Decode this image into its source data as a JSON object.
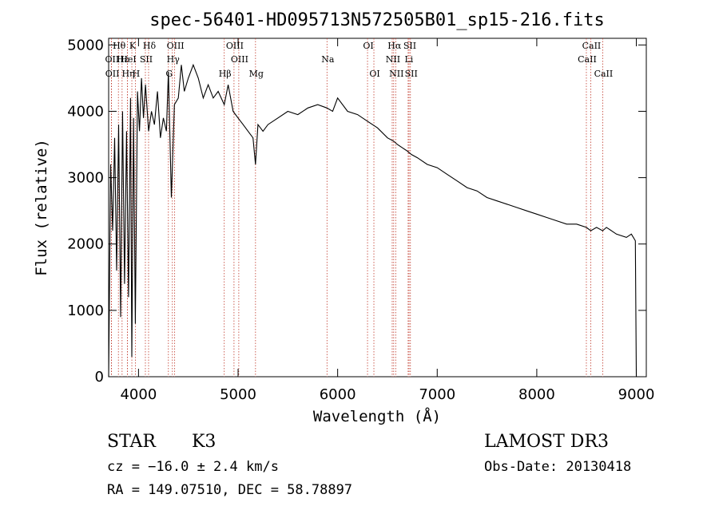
{
  "chart_data": {
    "type": "line",
    "title": "spec-56401-HD095713N572505B01_sp15-216.fits",
    "xlabel": "Wavelength (Å)",
    "ylabel": "Flux (relative)",
    "xlim": [
      3700,
      9100
    ],
    "ylim": [
      0,
      5100
    ],
    "x_ticks": [
      4000,
      5000,
      6000,
      7000,
      8000,
      9000
    ],
    "y_ticks": [
      0,
      1000,
      2000,
      3000,
      4000,
      5000
    ],
    "grid": false,
    "series": [
      {
        "name": "flux",
        "x": [
          3700,
          3720,
          3740,
          3760,
          3780,
          3800,
          3820,
          3840,
          3860,
          3880,
          3900,
          3920,
          3933,
          3950,
          3968,
          3990,
          4010,
          4030,
          4050,
          4070,
          4101,
          4130,
          4160,
          4190,
          4220,
          4250,
          4280,
          4300,
          4330,
          4360,
          4400,
          4430,
          4460,
          4500,
          4550,
          4600,
          4650,
          4700,
          4750,
          4800,
          4861,
          4900,
          4950,
          5000,
          5050,
          5100,
          5150,
          5175,
          5200,
          5250,
          5300,
          5400,
          5500,
          5600,
          5700,
          5800,
          5893,
          5950,
          6000,
          6100,
          6200,
          6300,
          6400,
          6500,
          6563,
          6600,
          6650,
          6700,
          6740,
          6800,
          6900,
          7000,
          7100,
          7200,
          7300,
          7400,
          7500,
          7600,
          7700,
          7800,
          7900,
          8000,
          8100,
          8200,
          8300,
          8400,
          8498,
          8542,
          8600,
          8662,
          8700,
          8800,
          8900,
          8950,
          8990,
          9000
        ],
        "values": [
          0,
          3200,
          2200,
          3600,
          1600,
          3800,
          900,
          4000,
          1400,
          3700,
          1200,
          4200,
          300,
          3900,
          800,
          4300,
          3700,
          4500,
          3900,
          4400,
          3700,
          4000,
          3800,
          4300,
          3600,
          3900,
          3700,
          4600,
          2700,
          4100,
          4200,
          4700,
          4300,
          4500,
          4700,
          4500,
          4200,
          4400,
          4200,
          4300,
          4100,
          4400,
          4000,
          3900,
          3800,
          3700,
          3600,
          3200,
          3800,
          3700,
          3800,
          3900,
          4000,
          3950,
          4050,
          4100,
          4050,
          4000,
          4200,
          4000,
          3950,
          3850,
          3750,
          3600,
          3550,
          3500,
          3450,
          3400,
          3350,
          3300,
          3200,
          3150,
          3050,
          2950,
          2850,
          2800,
          2700,
          2650,
          2600,
          2550,
          2500,
          2450,
          2400,
          2350,
          2300,
          2300,
          2250,
          2200,
          2250,
          2200,
          2250,
          2150,
          2100,
          2150,
          2050,
          0
        ]
      }
    ],
    "lines": [
      {
        "name": "Hδ",
        "x": 4101,
        "row": 1
      },
      {
        "name": "OII",
        "x": 3727,
        "row": 2
      },
      {
        "name": "OII",
        "x": 3729,
        "row": 3
      },
      {
        "name": "Hθ",
        "x": 3798,
        "row": 1
      },
      {
        "name": "Hε",
        "x": 3835,
        "row": 2
      },
      {
        "name": "Hη",
        "x": 3889,
        "row": 3
      },
      {
        "name": "K",
        "x": 3933,
        "row": 1
      },
      {
        "name": "HeI",
        "x": 3889,
        "row": 2
      },
      {
        "name": "H",
        "x": 3968,
        "row": 3
      },
      {
        "name": "SII",
        "x": 4069,
        "row": 2
      },
      {
        "name": "OIII",
        "x": 4363,
        "row": 1
      },
      {
        "name": "Hγ",
        "x": 4340,
        "row": 2
      },
      {
        "name": "G",
        "x": 4300,
        "row": 3
      },
      {
        "name": "Hβ",
        "x": 4861,
        "row": 3
      },
      {
        "name": "OIII",
        "x": 4959,
        "row": 1
      },
      {
        "name": "OIII",
        "x": 5007,
        "row": 2
      },
      {
        "name": "Mg",
        "x": 5175,
        "row": 3
      },
      {
        "name": "Na",
        "x": 5893,
        "row": 2
      },
      {
        "name": "OI",
        "x": 6300,
        "row": 1
      },
      {
        "name": "OI",
        "x": 6364,
        "row": 3
      },
      {
        "name": "Hα",
        "x": 6563,
        "row": 1
      },
      {
        "name": "NII",
        "x": 6548,
        "row": 2
      },
      {
        "name": "NII",
        "x": 6583,
        "row": 3
      },
      {
        "name": "SII",
        "x": 6717,
        "row": 1
      },
      {
        "name": "Li",
        "x": 6708,
        "row": 2
      },
      {
        "name": "SII",
        "x": 6731,
        "row": 3
      },
      {
        "name": "CaII",
        "x": 8542,
        "row": 1
      },
      {
        "name": "CaII",
        "x": 8498,
        "row": 2
      },
      {
        "name": "CaII",
        "x": 8662,
        "row": 3
      }
    ]
  },
  "info": {
    "object_type": "STAR",
    "subclass": "K3",
    "survey": "LAMOST DR3",
    "redshift": "cz = −16.0 ± 2.4 km/s",
    "obs_date": "Obs-Date: 20130418",
    "coords": "RA = 149.07510, DEC =  58.78897"
  }
}
